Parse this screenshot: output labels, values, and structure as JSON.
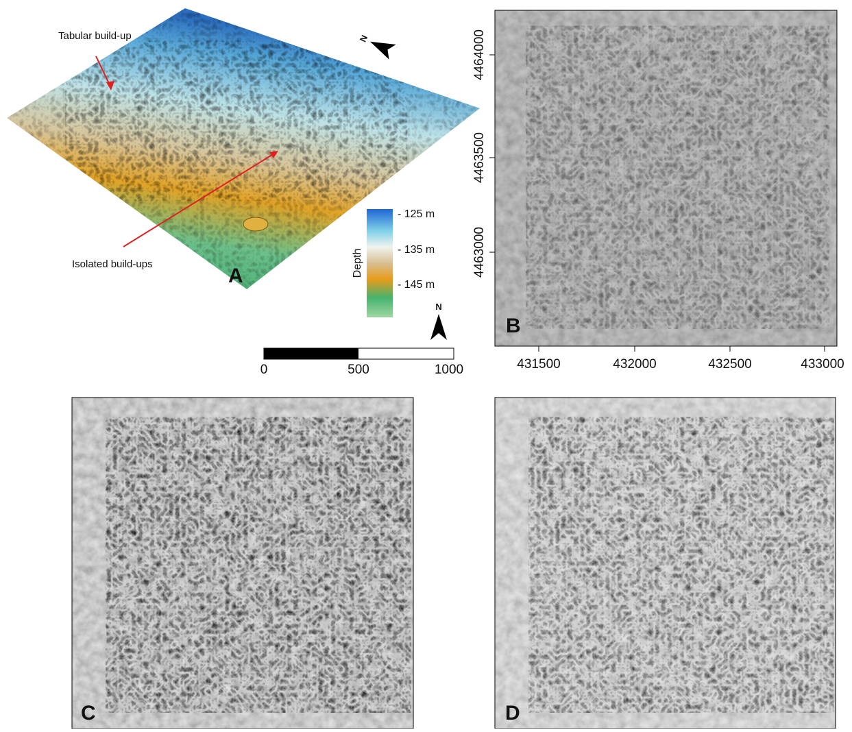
{
  "panel_a": {
    "letter": "A",
    "annotations": [
      "Tabular build-up",
      "Isolated build-ups"
    ],
    "colorbar": {
      "title": "Depth",
      "labels": [
        "- 125 m",
        "- 135 m",
        "- 145 m"
      ]
    },
    "north": "N",
    "scale_bar": [
      0,
      500,
      1000
    ]
  },
  "panel_b": {
    "letter": "B",
    "yticks": [
      4464000,
      4463500,
      4463000
    ],
    "xticks": [
      431500,
      432000,
      432500,
      433000
    ]
  },
  "panel_c": {
    "letter": "C"
  },
  "panel_d": {
    "letter": "D"
  }
}
